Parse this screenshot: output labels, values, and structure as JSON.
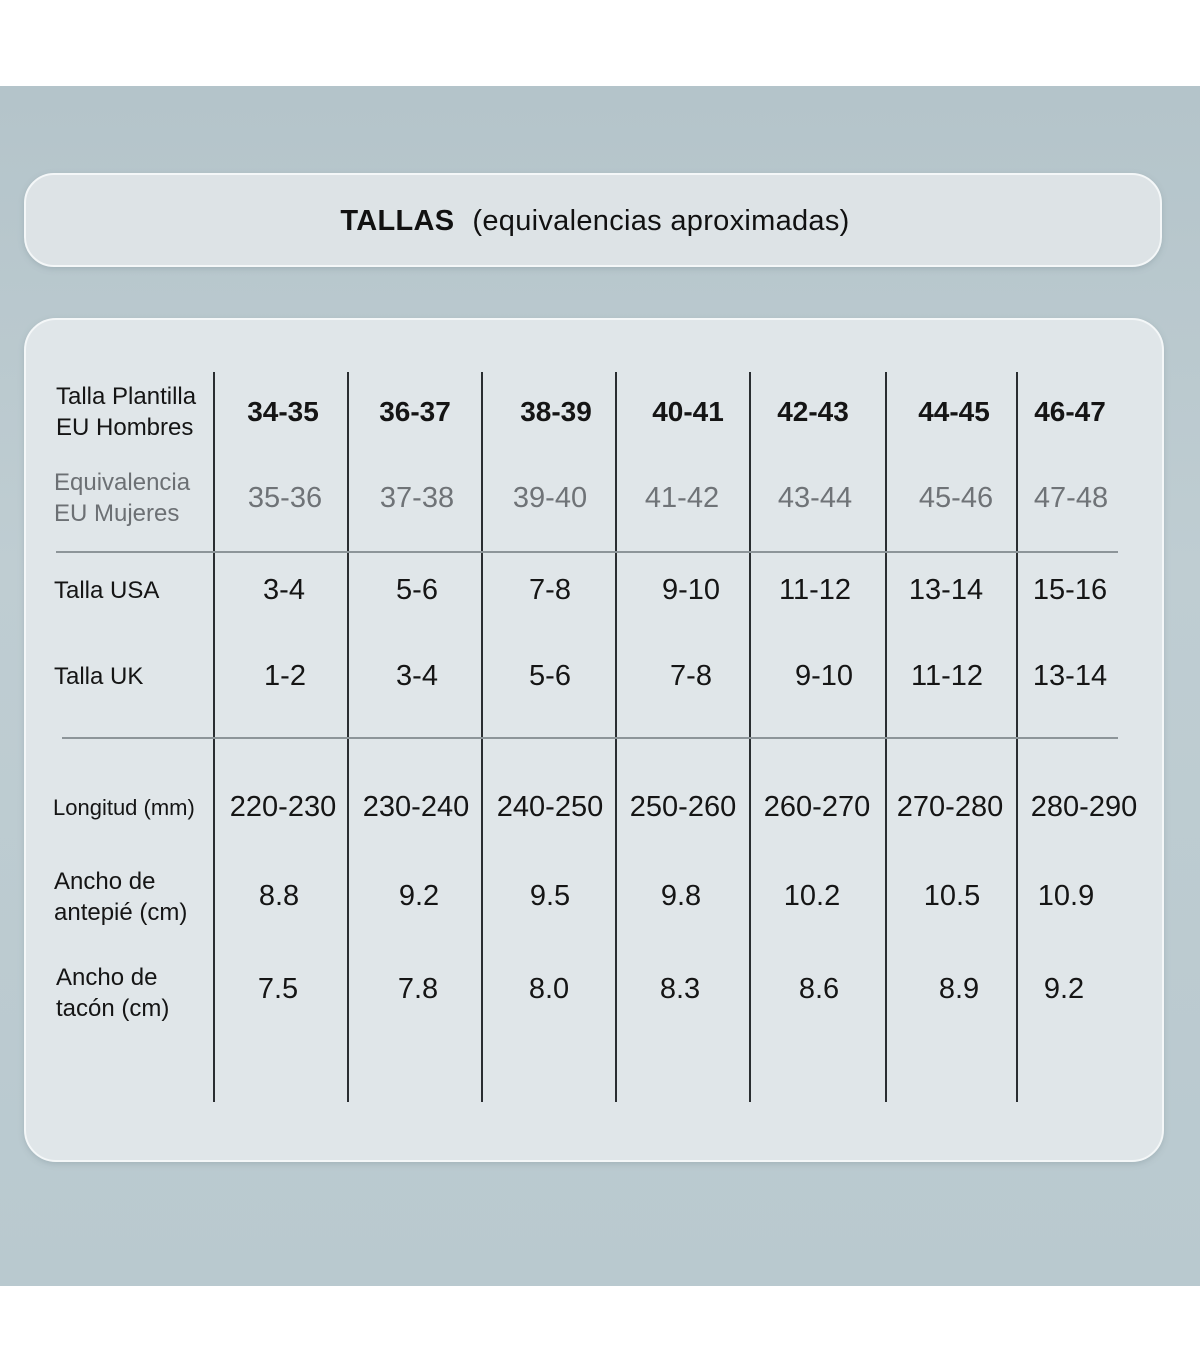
{
  "title": {
    "main": "TALLAS",
    "sub": "(equivalencias aproximadas)"
  },
  "rows": [
    {
      "key": "eu-men",
      "label_lines": [
        "Talla Plantilla",
        "EU Hombres"
      ],
      "values": [
        "34-35",
        "36-37",
        "38-39",
        "40-41",
        "42-43",
        "44-45",
        "46-47"
      ]
    },
    {
      "key": "eu-women",
      "label_lines": [
        "Equivalencia",
        "EU Mujeres"
      ],
      "values": [
        "35-36",
        "37-38",
        "39-40",
        "41-42",
        "43-44",
        "45-46",
        "47-48"
      ]
    },
    {
      "key": "usa",
      "label_lines": [
        "Talla USA"
      ],
      "values": [
        "3-4",
        "5-6",
        "7-8",
        "9-10",
        "11-12",
        "13-14",
        "15-16"
      ]
    },
    {
      "key": "uk",
      "label_lines": [
        "Talla UK"
      ],
      "values": [
        "1-2",
        "3-4",
        "5-6",
        "7-8",
        "9-10",
        "11-12",
        "13-14"
      ]
    },
    {
      "key": "length",
      "label_lines": [
        "Longitud (mm)"
      ],
      "values": [
        "220-230",
        "230-240",
        "240-250",
        "250-260",
        "260-270",
        "270-280",
        "280-290"
      ]
    },
    {
      "key": "forefoot",
      "label_lines": [
        "Ancho de",
        "antepié (cm)"
      ],
      "values": [
        "8.8",
        "9.2",
        "9.5",
        "9.8",
        "10.2",
        "10.5",
        "10.9"
      ]
    },
    {
      "key": "heel",
      "label_lines": [
        "Ancho de",
        "tacón (cm)"
      ],
      "values": [
        "7.5",
        "7.8",
        "8.0",
        "8.3",
        "8.6",
        "8.9",
        "9.2"
      ]
    }
  ]
}
